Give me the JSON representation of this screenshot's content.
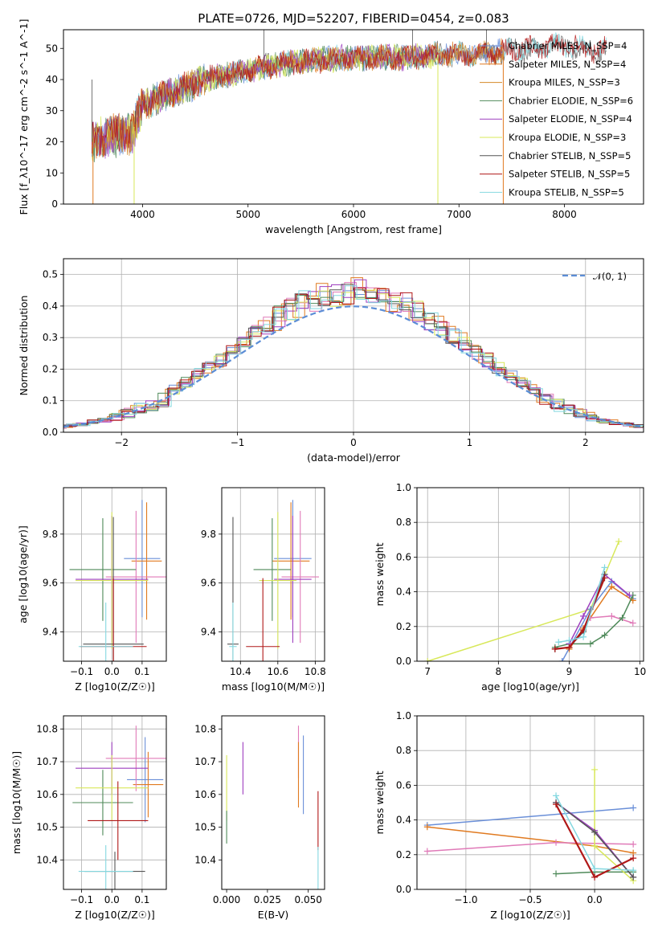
{
  "figure": {
    "title": "PLATE=0726, MJD=52207, FIBERID=0454, z=0.083"
  },
  "colors": {
    "Chabrier MILES": "#6a8fd8",
    "Salpeter MILES": "#e07a20",
    "Kroupa MILES": "#d48a28",
    "Chabrier ELODIE": "#4f8a5a",
    "Salpeter ELODIE": "#9e3fbf",
    "Kroupa ELODIE": "#d8e85a",
    "Chabrier STELIB": "#555555",
    "Salpeter STELIB": "#b01818",
    "Kroupa STELIB": "#84d8e0",
    "Kroupa MILES pink": "#e07ab8",
    "gaussian": "#5b8dd6"
  },
  "chart_data": [
    {
      "id": "spectrum",
      "type": "line",
      "xlabel": "wavelength [Angstrom, rest frame]",
      "ylabel": "Flux [f_λ10^-17 erg cm^-2 s^-1 A^-1]",
      "xlim": [
        3250,
        8750
      ],
      "ylim": [
        0,
        56
      ],
      "xticks": [
        "4000",
        "5000",
        "6000",
        "7000",
        "8000"
      ],
      "xtick_values": [
        4000,
        5000,
        6000,
        7000,
        8000
      ],
      "yticks": [
        "0",
        "10",
        "20",
        "30",
        "40",
        "50"
      ],
      "ytick_values": [
        0,
        10,
        20,
        30,
        40,
        50
      ],
      "legend_position": "top-right",
      "legend": [
        "Chabrier MILES, N_SSP=4",
        "Salpeter MILES, N_SSP=4",
        "Kroupa MILES, N_SSP=3",
        "Chabrier ELODIE, N_SSP=6",
        "Salpeter ELODIE, N_SSP=4",
        "Kroupa ELODIE, N_SSP=3",
        "Chabrier STELIB, N_SSP=5",
        "Salpeter STELIB, N_SSP=5",
        "Kroupa STELIB, N_SSP=5"
      ],
      "envelope_x": [
        3520,
        3700,
        3900,
        4000,
        4300,
        4600,
        5000,
        5300,
        5600,
        5900,
        6200,
        6500,
        6800,
        7100,
        7400,
        7700,
        8000,
        8300,
        8400
      ],
      "envelope_y": [
        20,
        22,
        23,
        32,
        36,
        40,
        43,
        45,
        46,
        47,
        47,
        47,
        48,
        48,
        49,
        50,
        51,
        49,
        50
      ],
      "spikes": [
        {
          "x": 3520,
          "y": 40,
          "series": "Chabrier STELIB"
        },
        {
          "x": 3930,
          "y": 30,
          "series": "Chabrier STELIB"
        },
        {
          "x": 5150,
          "y": 58,
          "series": "Chabrier STELIB"
        },
        {
          "x": 6560,
          "y": 58,
          "series": "Chabrier STELIB"
        },
        {
          "x": 7260,
          "y": 58,
          "series": "Chabrier STELIB"
        }
      ],
      "drops": [
        {
          "x": 3530,
          "series": "Salpeter MILES"
        },
        {
          "x": 3920,
          "series": "Kroupa ELODIE"
        },
        {
          "x": 6800,
          "series": "Kroupa ELODIE"
        },
        {
          "x": 7420,
          "series": "Salpeter MILES"
        }
      ]
    },
    {
      "id": "residuals",
      "type": "bar",
      "xlabel": "(data-model)/error",
      "ylabel": "Normed distribution",
      "xlim": [
        -2.5,
        2.5
      ],
      "ylim": [
        0,
        0.55
      ],
      "xticks": [
        "−2",
        "−1",
        "0",
        "1",
        "2"
      ],
      "xtick_values": [
        -2,
        -1,
        0,
        1,
        2
      ],
      "yticks": [
        "0.0",
        "0.1",
        "0.2",
        "0.3",
        "0.4",
        "0.5"
      ],
      "ytick_values": [
        0,
        0.1,
        0.2,
        0.3,
        0.4,
        0.5
      ],
      "grid": true,
      "legend_position": "top-right",
      "legend": [
        "𝒩(0, 1)"
      ],
      "bin_width": 0.1,
      "bin_jitter": 0.035,
      "series_names": [
        "Chabrier MILES",
        "Salpeter MILES",
        "Kroupa MILES pink",
        "Chabrier ELODIE",
        "Salpeter ELODIE",
        "Kroupa ELODIE",
        "Chabrier STELIB",
        "Salpeter STELIB",
        "Kroupa STELIB"
      ]
    },
    {
      "id": "z-age",
      "type": "scatter",
      "xlabel": "Z [log10(Z/Z☉)]",
      "ylabel": "age [log10(age/yr)]",
      "xlim": [
        -0.16,
        0.18
      ],
      "ylim": [
        9.28,
        9.99
      ],
      "xticks": [
        "−0.1",
        "0.0",
        "0.1"
      ],
      "xtick_values": [
        -0.1,
        0.0,
        0.1
      ],
      "yticks": [
        "9.4",
        "9.6",
        "9.8"
      ],
      "ytick_values": [
        9.4,
        9.6,
        9.8
      ],
      "grid": true,
      "points": [
        {
          "series": "Chabrier MILES",
          "x": 0.1,
          "xerr": 0.06,
          "y": 9.7,
          "yerr": 0.24
        },
        {
          "series": "Salpeter MILES",
          "x": 0.115,
          "xerr": 0.05,
          "y": 9.69,
          "yerr": 0.24
        },
        {
          "series": "Kroupa MILES pink",
          "x": 0.08,
          "xerr": 0.1,
          "y": 9.625,
          "yerr": 0.27
        },
        {
          "series": "Chabrier ELODIE",
          "x": -0.03,
          "xerr": 0.11,
          "y": 9.655,
          "yerr": 0.21
        },
        {
          "series": "Salpeter ELODIE",
          "x": 0.0,
          "xerr": 0.12,
          "y": 9.615,
          "yerr": 0.26
        },
        {
          "series": "Kroupa ELODIE",
          "x": 0.0,
          "xerr": 0.12,
          "y": 9.61,
          "yerr": 0.28
        },
        {
          "series": "Chabrier STELIB",
          "x": 0.005,
          "xerr": 0.1,
          "y": 9.35,
          "yerr": 0.52
        },
        {
          "series": "Salpeter STELIB",
          "x": 0.005,
          "xerr": 0.11,
          "y": 9.34,
          "yerr": 0.28
        },
        {
          "series": "Kroupa STELIB",
          "x": -0.02,
          "xerr": 0.09,
          "y": 9.34,
          "yerr": 0.18
        }
      ]
    },
    {
      "id": "mass-age",
      "type": "scatter",
      "xlabel": "mass [log10(M/M☉)]",
      "ylabel": "",
      "xlim": [
        10.3,
        10.85
      ],
      "ylim": [
        9.28,
        9.99
      ],
      "xticks": [
        "10.4",
        "10.6",
        "10.8"
      ],
      "xtick_values": [
        10.4,
        10.6,
        10.8
      ],
      "yticks": [
        "9.4",
        "9.6",
        "9.8"
      ],
      "ytick_values": [
        9.4,
        9.6,
        9.8
      ],
      "grid": true,
      "points": [
        {
          "series": "Chabrier MILES",
          "x": 10.68,
          "xerr": 0.1,
          "y": 9.7,
          "yerr": 0.24
        },
        {
          "series": "Salpeter MILES",
          "x": 10.67,
          "xerr": 0.1,
          "y": 9.69,
          "yerr": 0.24
        },
        {
          "series": "Kroupa MILES pink",
          "x": 10.72,
          "xerr": 0.1,
          "y": 9.625,
          "yerr": 0.27
        },
        {
          "series": "Chabrier ELODIE",
          "x": 10.57,
          "xerr": 0.1,
          "y": 9.655,
          "yerr": 0.21
        },
        {
          "series": "Salpeter ELODIE",
          "x": 10.68,
          "xerr": 0.1,
          "y": 9.615,
          "yerr": 0.26
        },
        {
          "series": "Kroupa ELODIE",
          "x": 10.6,
          "xerr": 0.1,
          "y": 9.61,
          "yerr": 0.28
        },
        {
          "series": "Chabrier STELIB",
          "x": 10.36,
          "xerr": 0.03,
          "y": 9.35,
          "yerr": 0.52
        },
        {
          "series": "Salpeter STELIB",
          "x": 10.52,
          "xerr": 0.09,
          "y": 9.34,
          "yerr": 0.28
        },
        {
          "series": "Kroupa STELIB",
          "x": 10.36,
          "xerr": 0.02,
          "y": 9.34,
          "yerr": 0.18
        }
      ]
    },
    {
      "id": "age-massweight",
      "type": "line",
      "xlabel": "age [log10(age/yr)]",
      "ylabel": "mass weight",
      "xlim": [
        6.85,
        10.05
      ],
      "ylim": [
        0,
        1
      ],
      "xticks": [
        "7",
        "8",
        "9",
        "10"
      ],
      "xtick_values": [
        7,
        8,
        9,
        10
      ],
      "yticks": [
        "0.0",
        "0.2",
        "0.4",
        "0.6",
        "0.8",
        "1.0"
      ],
      "ytick_values": [
        0,
        0.2,
        0.4,
        0.6,
        0.8,
        1.0
      ],
      "grid": true,
      "series": [
        {
          "series": "Kroupa ELODIE",
          "x": [
            7.0,
            9.3,
            9.7
          ],
          "y": [
            0.0,
            0.3,
            0.69
          ]
        },
        {
          "series": "Chabrier MILES",
          "x": [
            8.9,
            9.3,
            9.6,
            9.9
          ],
          "y": [
            0.0,
            0.3,
            0.46,
            0.36
          ]
        },
        {
          "series": "Salpeter MILES",
          "x": [
            9.0,
            9.2,
            9.6,
            9.9
          ],
          "y": [
            0.07,
            0.19,
            0.43,
            0.35
          ]
        },
        {
          "series": "Kroupa MILES pink",
          "x": [
            9.3,
            9.6,
            9.9
          ],
          "y": [
            0.25,
            0.26,
            0.22
          ]
        },
        {
          "series": "Chabrier ELODIE",
          "x": [
            8.8,
            9.0,
            9.3,
            9.5,
            9.75,
            9.9
          ],
          "y": [
            0.08,
            0.1,
            0.1,
            0.15,
            0.25,
            0.38
          ]
        },
        {
          "series": "Salpeter ELODIE",
          "x": [
            9.0,
            9.2,
            9.5,
            9.85
          ],
          "y": [
            0.1,
            0.26,
            0.5,
            0.38
          ]
        },
        {
          "series": "Chabrier STELIB",
          "x": [
            8.8,
            9.0,
            9.2,
            9.5
          ],
          "y": [
            0.07,
            0.08,
            0.17,
            0.5
          ]
        },
        {
          "series": "Salpeter STELIB",
          "x": [
            8.8,
            9.0,
            9.2,
            9.5
          ],
          "y": [
            0.07,
            0.08,
            0.18,
            0.48
          ]
        },
        {
          "series": "Kroupa STELIB",
          "x": [
            8.85,
            9.0,
            9.2,
            9.5
          ],
          "y": [
            0.11,
            0.12,
            0.14,
            0.54
          ]
        }
      ]
    },
    {
      "id": "z-mass",
      "type": "scatter",
      "xlabel": "Z [log10(Z/Z☉)]",
      "ylabel": "mass [log10(M/M☉)]",
      "xlim": [
        -0.16,
        0.18
      ],
      "ylim": [
        10.31,
        10.84
      ],
      "xticks": [
        "−0.1",
        "0.0",
        "0.1"
      ],
      "xtick_values": [
        -0.1,
        0.0,
        0.1
      ],
      "yticks": [
        "10.4",
        "10.5",
        "10.6",
        "10.7",
        "10.8"
      ],
      "ytick_values": [
        10.4,
        10.5,
        10.6,
        10.7,
        10.8
      ],
      "grid": true,
      "points": [
        {
          "series": "Chabrier MILES",
          "x": 0.11,
          "xerr": 0.06,
          "y": 10.645,
          "yerr": 0.13
        },
        {
          "series": "Salpeter MILES",
          "x": 0.12,
          "xerr": 0.05,
          "y": 10.63,
          "yerr": 0.1
        },
        {
          "series": "Kroupa MILES pink",
          "x": 0.08,
          "xerr": 0.1,
          "y": 10.71,
          "yerr": 0.1
        },
        {
          "series": "Chabrier ELODIE",
          "x": -0.03,
          "xerr": 0.1,
          "y": 10.575,
          "yerr": 0.1
        },
        {
          "series": "Salpeter ELODIE",
          "x": 0.0,
          "xerr": 0.12,
          "y": 10.68,
          "yerr": 0.08
        },
        {
          "series": "Kroupa ELODIE",
          "x": 0.0,
          "xerr": 0.12,
          "y": 10.62,
          "yerr": 0.1
        },
        {
          "series": "Chabrier STELIB",
          "x": 0.01,
          "xerr": 0.1,
          "y": 10.365,
          "yerr": 0.06
        },
        {
          "series": "Salpeter STELIB",
          "x": 0.02,
          "xerr": 0.1,
          "y": 10.52,
          "yerr": 0.12
        },
        {
          "series": "Kroupa STELIB",
          "x": -0.02,
          "xerr": 0.09,
          "y": 10.365,
          "yerr": 0.08
        }
      ]
    },
    {
      "id": "ebv-mass",
      "type": "scatter",
      "xlabel": "E(B-V)",
      "ylabel": "",
      "xlim": [
        -0.003,
        0.06
      ],
      "ylim": [
        10.31,
        10.84
      ],
      "xticks": [
        "0.000",
        "0.025",
        "0.050"
      ],
      "xtick_values": [
        0,
        0.025,
        0.05
      ],
      "yticks": [
        "10.4",
        "10.5",
        "10.6",
        "10.7",
        "10.8"
      ],
      "ytick_values": [
        10.4,
        10.5,
        10.6,
        10.7,
        10.8
      ],
      "points": [
        {
          "series": "Kroupa ELODIE",
          "x": 0.0,
          "y": 10.62,
          "yerr": 0.1
        },
        {
          "series": "Chabrier ELODIE",
          "x": 0.0,
          "y": 10.5,
          "yerr": 0.05
        },
        {
          "series": "Salpeter ELODIE",
          "x": 0.01,
          "y": 10.68,
          "yerr": 0.08
        },
        {
          "series": "Kroupa MILES pink",
          "x": 0.044,
          "y": 10.73,
          "yerr": 0.08
        },
        {
          "series": "Salpeter MILES",
          "x": 0.044,
          "y": 10.66,
          "yerr": 0.1
        },
        {
          "series": "Chabrier MILES",
          "x": 0.047,
          "y": 10.66,
          "yerr": 0.12
        },
        {
          "series": "Salpeter STELIB",
          "x": 0.056,
          "y": 10.52,
          "yerr": 0.09
        },
        {
          "series": "Kroupa STELIB",
          "x": 0.056,
          "y": 10.37,
          "yerr": 0.07
        }
      ]
    },
    {
      "id": "z-massweight",
      "type": "line",
      "xlabel": "Z [log10(Z/Z☉)]",
      "ylabel": "mass weight",
      "xlim": [
        -1.38,
        0.38
      ],
      "ylim": [
        0,
        1
      ],
      "xticks": [
        "−1.0",
        "−0.5",
        "0.0"
      ],
      "xtick_values": [
        -1.0,
        -0.5,
        0.0
      ],
      "yticks": [
        "0.0",
        "0.2",
        "0.4",
        "0.6",
        "0.8",
        "1.0"
      ],
      "ytick_values": [
        0,
        0.2,
        0.4,
        0.6,
        0.8,
        1.0
      ],
      "grid": true,
      "series": [
        {
          "series": "Chabrier MILES",
          "x": [
            -1.3,
            0.3
          ],
          "y": [
            0.37,
            0.47
          ]
        },
        {
          "series": "Salpeter MILES",
          "x": [
            -1.3,
            0.0,
            0.3
          ],
          "y": [
            0.36,
            0.25,
            0.21
          ]
        },
        {
          "series": "Kroupa MILES pink",
          "x": [
            -1.3,
            -0.3,
            0.3
          ],
          "y": [
            0.22,
            0.27,
            0.26
          ]
        },
        {
          "series": "Chabrier ELODIE",
          "x": [
            -0.3,
            0.0,
            0.3
          ],
          "y": [
            0.09,
            0.1,
            0.1
          ]
        },
        {
          "series": "Salpeter ELODIE",
          "x": [
            -0.3,
            0.0,
            0.3
          ],
          "y": [
            0.5,
            0.34,
            0.07
          ]
        },
        {
          "series": "Kroupa ELODIE",
          "x": [
            0.0,
            0.0,
            0.3
          ],
          "y": [
            0.69,
            0.25,
            0.05
          ]
        },
        {
          "series": "Chabrier STELIB",
          "x": [
            -0.3,
            0.0,
            0.3
          ],
          "y": [
            0.5,
            0.33,
            0.07
          ]
        },
        {
          "series": "Salpeter STELIB",
          "x": [
            -0.3,
            0.0,
            0.3
          ],
          "y": [
            0.49,
            0.07,
            0.18
          ]
        },
        {
          "series": "Kroupa STELIB",
          "x": [
            -0.3,
            0.0,
            0.3
          ],
          "y": [
            0.54,
            0.12,
            0.11
          ]
        }
      ]
    }
  ]
}
